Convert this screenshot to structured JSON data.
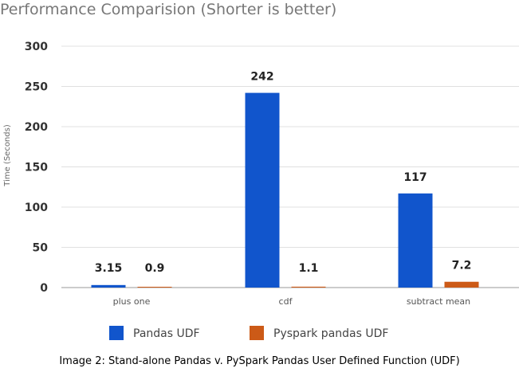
{
  "chart_data": {
    "type": "bar",
    "title": "Performance Comparision (Shorter is better)",
    "xlabel": "",
    "ylabel": "Time (Seconds)",
    "ylim": [
      0,
      300
    ],
    "yticks": [
      "0",
      "50",
      "100",
      "150",
      "200",
      "250",
      "300"
    ],
    "categories": [
      "plus one",
      "cdf",
      "subtract mean"
    ],
    "series": [
      {
        "name": "Pandas UDF",
        "color": "#1155cc",
        "values": [
          3.15,
          242,
          117
        ],
        "labels": [
          "3.15",
          "242",
          "117"
        ]
      },
      {
        "name": "Pyspark pandas UDF",
        "color": "#cc5a17",
        "values": [
          0.9,
          1.1,
          7.2
        ],
        "labels": [
          "0.9",
          "1.1",
          "7.2"
        ]
      }
    ],
    "legend": "bottom",
    "grid": true
  },
  "caption": "Image 2: Stand-alone Pandas v. PySpark Pandas User Defined Function (UDF)"
}
